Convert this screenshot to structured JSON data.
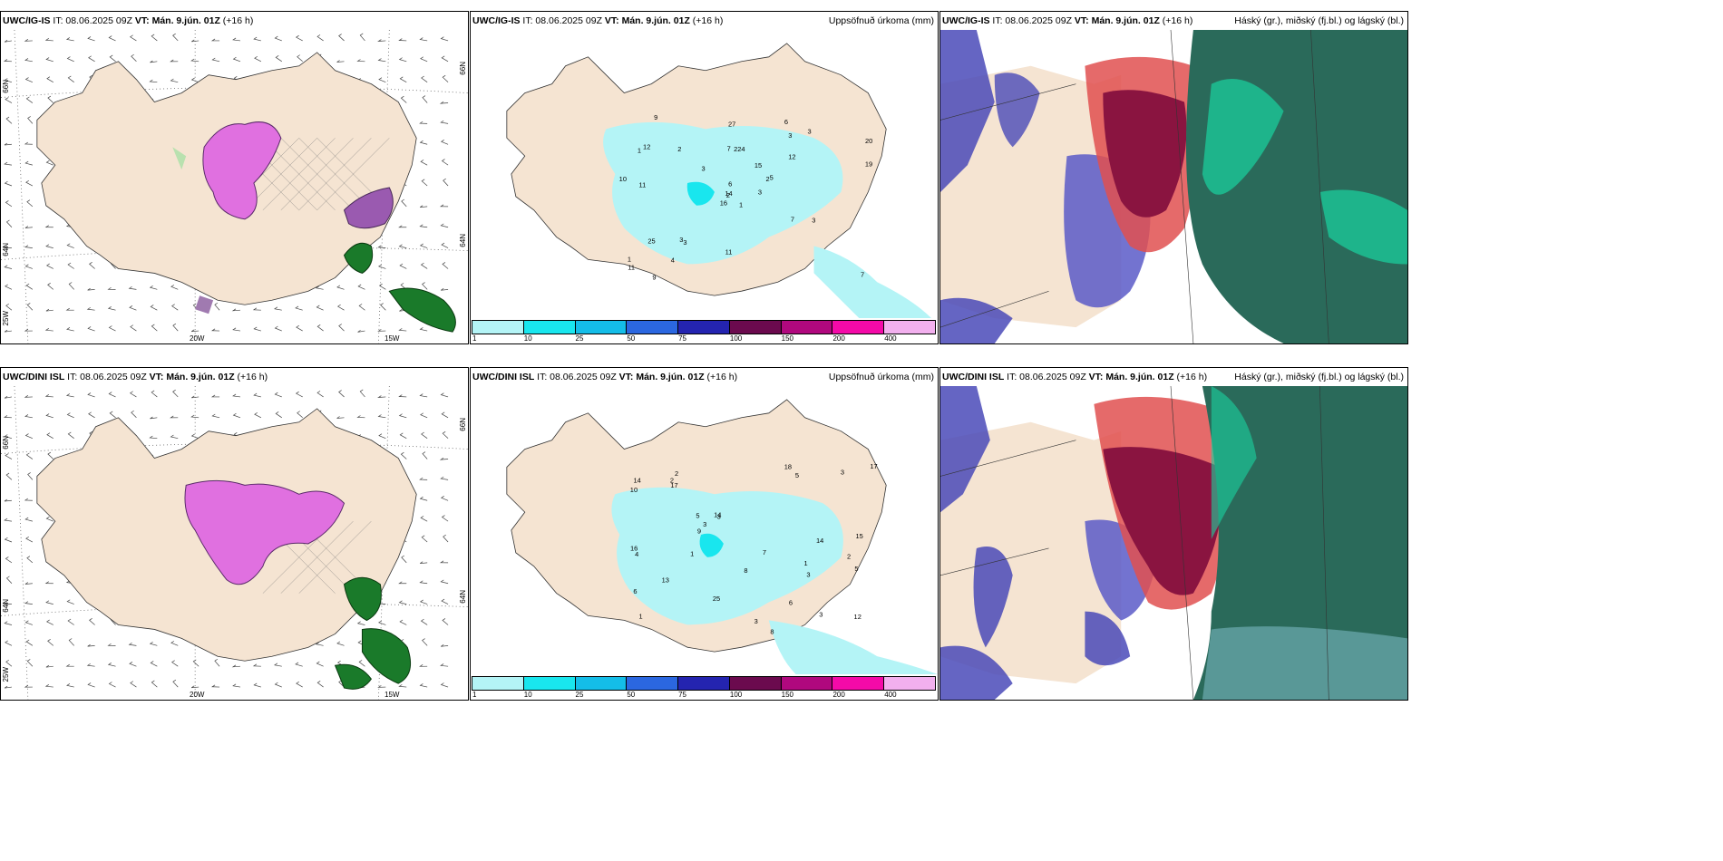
{
  "panels": [
    {
      "model": "UWC/IG-IS",
      "it": "IT: 08.06.2025 09Z",
      "vt_label": "VT:",
      "vt": "Mán. 9.jún. 01Z",
      "lead": "(+16 h)",
      "right_title": "",
      "type": "wind"
    },
    {
      "model": "UWC/IG-IS",
      "it": "IT: 08.06.2025 09Z",
      "vt_label": "VT:",
      "vt": "Mán. 9.jún. 01Z",
      "lead": "(+16 h)",
      "right_title": "Uppsöfnuð úrkoma (mm)",
      "type": "precip"
    },
    {
      "model": "UWC/IG-IS",
      "it": "IT: 08.06.2025 09Z",
      "vt_label": "VT:",
      "vt": "Mán. 9.jún. 01Z",
      "lead": "(+16 h)",
      "right_title": "Háský (gr.), miðský (fj.bl.) og lágský (bl.)",
      "type": "cloud"
    },
    {
      "model": "UWC/DINI ISL",
      "it": "IT: 08.06.2025 09Z",
      "vt_label": "VT:",
      "vt": "Mán. 9.jún. 01Z",
      "lead": "(+16 h)",
      "right_title": "",
      "type": "wind"
    },
    {
      "model": "UWC/DINI ISL",
      "it": "IT: 08.06.2025 09Z",
      "vt_label": "VT:",
      "vt": "Mán. 9.jún. 01Z",
      "lead": "(+16 h)",
      "right_title": "Uppsöfnuð úrkoma (mm)",
      "type": "precip"
    },
    {
      "model": "UWC/DINI ISL",
      "it": "IT: 08.06.2025 09Z",
      "vt_label": "VT:",
      "vt": "Mán. 9.jún. 01Z",
      "lead": "(+16 h)",
      "right_title": "Háský (gr.), miðský (fj.bl.) og lágský (bl.)",
      "type": "cloud"
    }
  ],
  "axis_labels": {
    "lat66": "66N",
    "lat64": "64N",
    "lon25": "25W",
    "lon20": "20W",
    "lon15": "15W"
  },
  "colorbar": {
    "labels": [
      "1",
      "10",
      "25",
      "50",
      "75",
      "100",
      "150",
      "200",
      "400"
    ],
    "colors": [
      "#b4f4f6",
      "#19e6ee",
      "#14bde8",
      "#2b67e0",
      "#2424b0",
      "#6b0a4e",
      "#b0087e",
      "#f40aa8",
      "#f2b0ee"
    ]
  },
  "precip_values_top": [
    "1",
    "1",
    "2",
    "1",
    "2",
    "3",
    "6",
    "4",
    "3",
    "3",
    "9",
    "7",
    "11",
    "20",
    "16",
    "12",
    "9",
    "7",
    "15",
    "25",
    "3",
    "11",
    "4",
    "22",
    "5",
    "3",
    "12",
    "27",
    "10",
    "7",
    "19",
    "14",
    "11",
    "6",
    "2",
    "3",
    "3"
  ],
  "precip_values_bottom": [
    "1",
    "2",
    "1",
    "2",
    "3",
    "3",
    "6",
    "5",
    "5",
    "8",
    "10",
    "16",
    "14",
    "12",
    "25",
    "15",
    "8",
    "7",
    "14",
    "13",
    "17",
    "3",
    "9",
    "5",
    "18",
    "2",
    "3",
    "4",
    "17",
    "14",
    "3",
    "6",
    "3",
    "1"
  ]
}
